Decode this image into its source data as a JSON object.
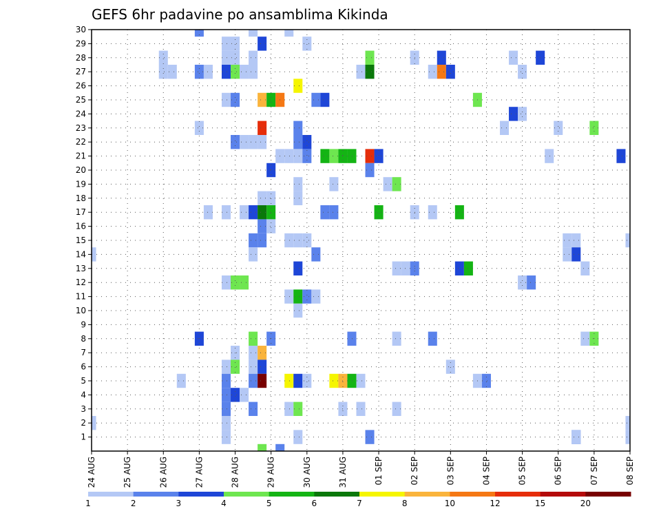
{
  "chart_data": {
    "type": "heatmap",
    "title": "GEFS 6hr padavine po ansamblima Kikinda",
    "xlabel": "",
    "ylabel": "",
    "x_tick_labels": [
      "24 AUG",
      "25 AUG",
      "26 AUG",
      "27 AUG",
      "28 AUG",
      "29 AUG",
      "30 AUG",
      "31 AUG",
      "01 SEP",
      "02 SEP",
      "03 SEP",
      "04 SEP",
      "05 SEP",
      "06 SEP",
      "07 SEP",
      "08 SEP"
    ],
    "y_tick_labels": [
      "1",
      "2",
      "3",
      "4",
      "5",
      "6",
      "7",
      "8",
      "9",
      "10",
      "11",
      "12",
      "13",
      "14",
      "15",
      "16",
      "17",
      "18",
      "19",
      "20",
      "21",
      "22",
      "23",
      "24",
      "25",
      "26",
      "27",
      "28",
      "29",
      "30"
    ],
    "xlim": [
      "24 AUG",
      "08 SEP"
    ],
    "ylim": [
      0,
      30
    ],
    "grid": true,
    "colorbar": {
      "placement": "bottom",
      "labels": [
        "1",
        "2",
        "3",
        "4",
        "5",
        "6",
        "7",
        "8",
        "10",
        "12",
        "15",
        "20"
      ],
      "bins": [
        {
          "from": 1,
          "to": 2,
          "color": "#b4c8f5"
        },
        {
          "from": 2,
          "to": 3,
          "color": "#5a82eb"
        },
        {
          "from": 3,
          "to": 4,
          "color": "#1e46d7"
        },
        {
          "from": 4,
          "to": 5,
          "color": "#6ee650"
        },
        {
          "from": 5,
          "to": 6,
          "color": "#14b414"
        },
        {
          "from": 6,
          "to": 7,
          "color": "#0a780a"
        },
        {
          "from": 7,
          "to": 8,
          "color": "#f5f500"
        },
        {
          "from": 8,
          "to": 10,
          "color": "#fab43c"
        },
        {
          "from": 10,
          "to": 12,
          "color": "#f57814"
        },
        {
          "from": 12,
          "to": 15,
          "color": "#e62d0a"
        },
        {
          "from": 15,
          "to": 20,
          "color": "#b40a0a"
        },
        {
          "from": 20,
          "to": 30,
          "color": "#780000"
        }
      ]
    },
    "cells_note": "x = time step index (6-hourly, 0 = 24 AUG 00z), y = ensemble member, v = color bin index",
    "cells": [
      [
        0,
        14,
        0
      ],
      [
        0,
        2,
        0
      ],
      [
        15,
        2,
        0
      ],
      [
        15,
        1,
        0
      ],
      [
        8,
        27,
        0
      ],
      [
        8,
        28,
        0
      ],
      [
        9,
        27,
        0
      ],
      [
        10,
        5,
        0
      ],
      [
        12,
        30,
        1
      ],
      [
        12,
        27,
        1
      ],
      [
        12,
        23,
        0
      ],
      [
        12,
        8,
        2
      ],
      [
        13,
        27,
        0
      ],
      [
        13,
        17,
        0
      ],
      [
        15,
        29,
        0
      ],
      [
        15,
        28,
        0
      ],
      [
        15,
        27,
        2
      ],
      [
        15,
        25,
        0
      ],
      [
        15,
        17,
        0
      ],
      [
        15,
        12,
        0
      ],
      [
        15,
        6,
        0
      ],
      [
        15,
        5,
        1
      ],
      [
        15,
        4,
        1
      ],
      [
        15,
        3,
        1
      ],
      [
        16,
        29,
        0
      ],
      [
        16,
        28,
        0
      ],
      [
        16,
        27,
        3
      ],
      [
        16,
        25,
        1
      ],
      [
        16,
        22,
        1
      ],
      [
        16,
        12,
        3
      ],
      [
        16,
        7,
        0
      ],
      [
        16,
        6,
        3
      ],
      [
        16,
        4,
        2
      ],
      [
        17,
        27,
        0
      ],
      [
        17,
        22,
        0
      ],
      [
        17,
        17,
        0
      ],
      [
        17,
        12,
        3
      ],
      [
        17,
        4,
        0
      ],
      [
        18,
        30,
        0
      ],
      [
        18,
        28,
        0
      ],
      [
        18,
        27,
        0
      ],
      [
        18,
        22,
        0
      ],
      [
        18,
        17,
        2
      ],
      [
        18,
        15,
        1
      ],
      [
        18,
        14,
        0
      ],
      [
        18,
        8,
        3
      ],
      [
        18,
        7,
        0
      ],
      [
        18,
        6,
        0
      ],
      [
        18,
        5,
        1
      ],
      [
        18,
        3,
        1
      ],
      [
        19,
        29,
        2
      ],
      [
        19,
        25,
        7
      ],
      [
        19,
        23,
        9
      ],
      [
        19,
        22,
        0
      ],
      [
        19,
        18,
        0
      ],
      [
        19,
        17,
        5
      ],
      [
        19,
        16,
        1
      ],
      [
        19,
        15,
        1
      ],
      [
        19,
        7,
        7
      ],
      [
        19,
        6,
        2
      ],
      [
        19,
        5,
        11
      ],
      [
        19,
        0,
        3
      ],
      [
        20,
        25,
        4
      ],
      [
        20,
        20,
        2
      ],
      [
        20,
        18,
        0
      ],
      [
        20,
        17,
        4
      ],
      [
        20,
        16,
        0
      ],
      [
        20,
        8,
        1
      ],
      [
        21,
        25,
        8
      ],
      [
        21,
        21,
        0
      ],
      [
        21,
        0,
        1
      ],
      [
        22,
        30,
        0
      ],
      [
        22,
        21,
        0
      ],
      [
        22,
        15,
        0
      ],
      [
        22,
        11,
        0
      ],
      [
        22,
        5,
        6
      ],
      [
        22,
        3,
        0
      ],
      [
        23,
        26,
        6
      ],
      [
        23,
        23,
        1
      ],
      [
        23,
        22,
        1
      ],
      [
        23,
        21,
        0
      ],
      [
        23,
        19,
        0
      ],
      [
        23,
        18,
        0
      ],
      [
        23,
        15,
        0
      ],
      [
        23,
        13,
        2
      ],
      [
        23,
        11,
        4
      ],
      [
        23,
        10,
        0
      ],
      [
        23,
        5,
        2
      ],
      [
        23,
        3,
        3
      ],
      [
        23,
        1,
        0
      ],
      [
        24,
        29,
        0
      ],
      [
        24,
        22,
        2
      ],
      [
        24,
        21,
        1
      ],
      [
        24,
        15,
        0
      ],
      [
        24,
        11,
        1
      ],
      [
        24,
        5,
        0
      ],
      [
        25,
        25,
        1
      ],
      [
        25,
        14,
        1
      ],
      [
        25,
        11,
        0
      ],
      [
        26,
        25,
        2
      ],
      [
        26,
        21,
        4
      ],
      [
        26,
        17,
        1
      ],
      [
        27,
        21,
        3
      ],
      [
        27,
        19,
        0
      ],
      [
        27,
        17,
        1
      ],
      [
        27,
        5,
        6
      ],
      [
        28,
        21,
        4
      ],
      [
        28,
        5,
        7
      ],
      [
        28,
        3,
        0
      ],
      [
        29,
        21,
        4
      ],
      [
        29,
        8,
        1
      ],
      [
        29,
        5,
        4
      ],
      [
        30,
        27,
        0
      ],
      [
        30,
        5,
        0
      ],
      [
        30,
        3,
        0
      ],
      [
        31,
        28,
        3
      ],
      [
        31,
        27,
        5
      ],
      [
        31,
        21,
        9
      ],
      [
        31,
        20,
        1
      ],
      [
        31,
        1,
        1
      ],
      [
        32,
        21,
        2
      ],
      [
        32,
        17,
        4
      ],
      [
        33,
        19,
        0
      ],
      [
        34,
        19,
        3
      ],
      [
        34,
        13,
        0
      ],
      [
        34,
        8,
        0
      ],
      [
        34,
        3,
        0
      ],
      [
        35,
        13,
        0
      ],
      [
        36,
        28,
        0
      ],
      [
        36,
        17,
        0
      ],
      [
        36,
        13,
        1
      ],
      [
        38,
        27,
        0
      ],
      [
        38,
        17,
        0
      ],
      [
        38,
        8,
        1
      ],
      [
        39,
        28,
        2
      ],
      [
        39,
        27,
        8
      ],
      [
        40,
        27,
        2
      ],
      [
        40,
        6,
        0
      ],
      [
        41,
        17,
        4
      ],
      [
        41,
        13,
        2
      ],
      [
        42,
        13,
        4
      ],
      [
        43,
        25,
        3
      ],
      [
        43,
        5,
        0
      ],
      [
        44,
        5,
        1
      ],
      [
        46,
        23,
        0
      ],
      [
        47,
        28,
        0
      ],
      [
        47,
        24,
        2
      ],
      [
        48,
        27,
        0
      ],
      [
        48,
        24,
        0
      ],
      [
        48,
        12,
        0
      ],
      [
        49,
        12,
        1
      ],
      [
        50,
        28,
        2
      ],
      [
        51,
        21,
        0
      ],
      [
        52,
        23,
        0
      ],
      [
        53,
        15,
        0
      ],
      [
        53,
        14,
        0
      ],
      [
        54,
        15,
        0
      ],
      [
        54,
        14,
        2
      ],
      [
        54,
        1,
        1
      ],
      [
        54,
        1,
        0
      ],
      [
        55,
        13,
        0
      ],
      [
        55,
        8,
        0
      ],
      [
        56,
        8,
        3
      ],
      [
        56,
        23,
        3
      ],
      [
        59,
        21,
        2
      ],
      [
        60,
        15,
        0
      ],
      [
        60,
        2,
        0
      ],
      [
        60,
        1,
        0
      ]
    ]
  }
}
